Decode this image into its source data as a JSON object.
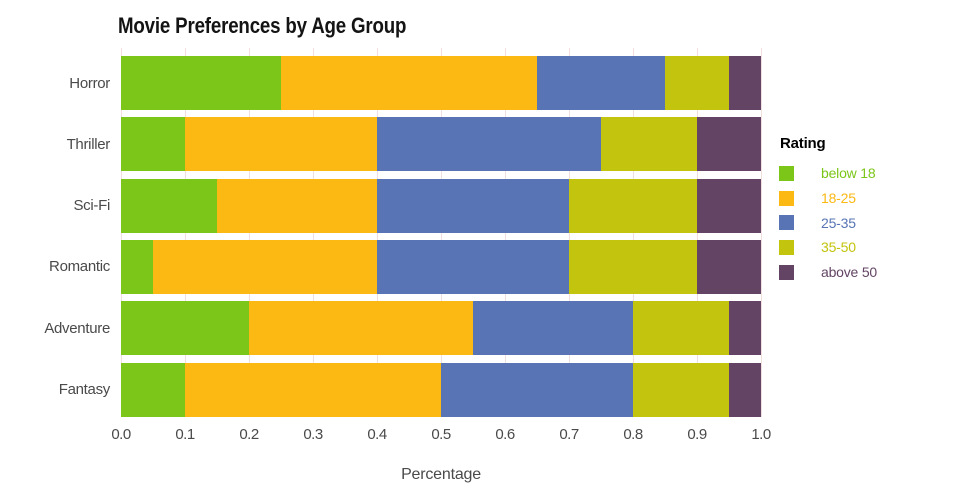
{
  "header": {
    "title": "Movie Preferences by Age Group"
  },
  "axes": {
    "x_title": "Percentage",
    "x_ticks": [
      "0.0",
      "0.1",
      "0.2",
      "0.3",
      "0.4",
      "0.5",
      "0.6",
      "0.7",
      "0.8",
      "0.9",
      "1.0"
    ]
  },
  "legend": {
    "title": "Rating",
    "items": [
      {
        "label": "below 18",
        "color": "#7bc618"
      },
      {
        "label": "18-25",
        "color": "#fcb813"
      },
      {
        "label": "25-35",
        "color": "#5874b5"
      },
      {
        "label": "35-50",
        "color": "#c3c40d"
      },
      {
        "label": "above 50",
        "color": "#634464"
      }
    ]
  },
  "chart_data": {
    "type": "bar",
    "stacked": true,
    "orientation": "horizontal",
    "title": "Movie Preferences by Age Group",
    "xlabel": "Percentage",
    "ylabel": "",
    "xlim": [
      0,
      1
    ],
    "x_tick_step": 0.1,
    "grid": true,
    "grid_color": "#f1dede",
    "legend_position": "right",
    "legend_title": "Rating",
    "categories": [
      "Horror",
      "Thriller",
      "Sci-Fi",
      "Romantic",
      "Adventure",
      "Fantasy"
    ],
    "series": [
      {
        "name": "below 18",
        "color": "#7bc618",
        "values": [
          0.25,
          0.1,
          0.15,
          0.05,
          0.2,
          0.1
        ]
      },
      {
        "name": "18-25",
        "color": "#fcb813",
        "values": [
          0.4,
          0.3,
          0.25,
          0.35,
          0.35,
          0.4
        ]
      },
      {
        "name": "25-35",
        "color": "#5874b5",
        "values": [
          0.2,
          0.35,
          0.3,
          0.3,
          0.25,
          0.3
        ]
      },
      {
        "name": "35-50",
        "color": "#c3c40d",
        "values": [
          0.1,
          0.15,
          0.2,
          0.2,
          0.15,
          0.15
        ]
      },
      {
        "name": "above 50",
        "color": "#634464",
        "values": [
          0.05,
          0.1,
          0.1,
          0.1,
          0.05,
          0.05
        ]
      }
    ]
  }
}
